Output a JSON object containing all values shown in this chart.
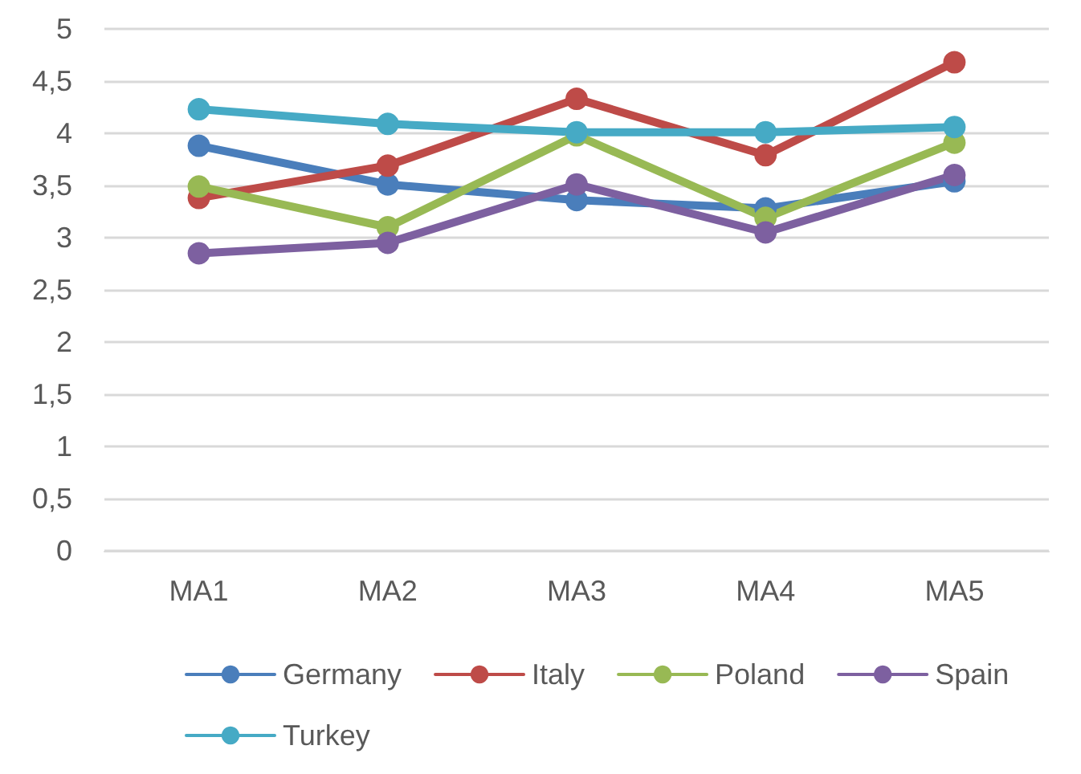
{
  "chart_data": {
    "type": "line",
    "categories": [
      "MA1",
      "MA2",
      "MA3",
      "MA4",
      "MA5"
    ],
    "series": [
      {
        "name": "Germany",
        "color": "#4a7ebb",
        "values": [
          3.88,
          3.51,
          3.36,
          3.28,
          3.54
        ]
      },
      {
        "name": "Italy",
        "color": "#be4b48",
        "values": [
          3.38,
          3.69,
          4.33,
          3.79,
          4.68
        ]
      },
      {
        "name": "Poland",
        "color": "#98b954",
        "values": [
          3.49,
          3.1,
          3.98,
          3.19,
          3.91
        ]
      },
      {
        "name": "Spain",
        "color": "#7d60a0",
        "values": [
          2.85,
          2.95,
          3.51,
          3.05,
          3.6
        ]
      },
      {
        "name": "Turkey",
        "color": "#46aac5",
        "values": [
          4.23,
          4.09,
          4.01,
          4.01,
          4.06
        ]
      }
    ],
    "ylim": [
      0,
      5
    ],
    "yticks": [
      0,
      {
        "value": 0.5,
        "label": "0,5"
      },
      1,
      {
        "value": 1.5,
        "label": "1,5"
      },
      2,
      {
        "value": 2.5,
        "label": "2,5"
      },
      3,
      {
        "value": 3.5,
        "label": "3,5"
      },
      4,
      {
        "value": 4.5,
        "label": "4,5"
      },
      5
    ],
    "grid": "y",
    "legend": "bottom",
    "marker": "circle",
    "line_style": "solid"
  }
}
